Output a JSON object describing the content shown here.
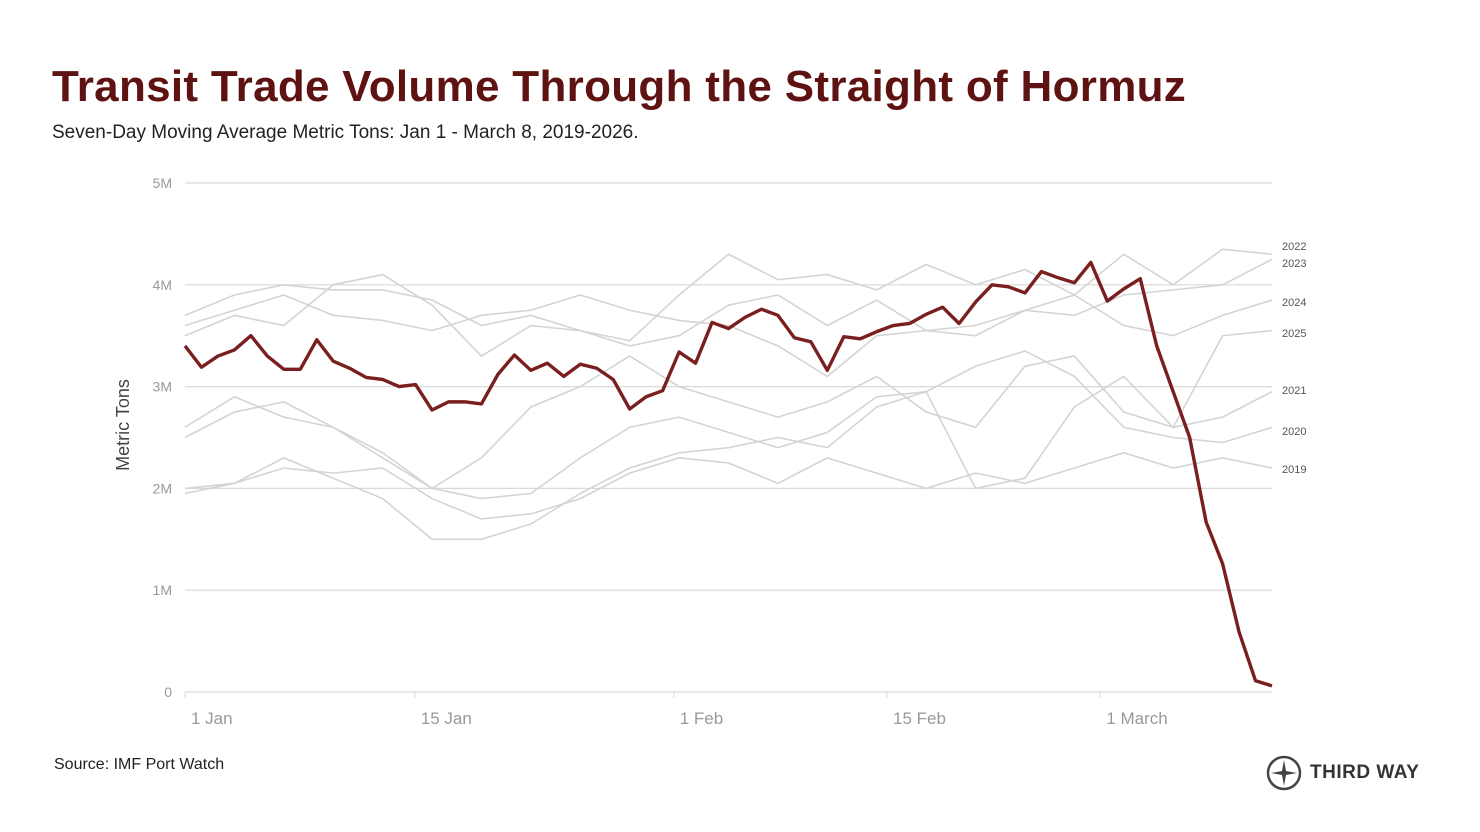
{
  "title": "Transit Trade Volume Through the Straight of Hormuz",
  "subtitle": "Seven-Day Moving Average Metric Tons: Jan 1 - March 8, 2019-2026.",
  "source": "Source: IMF Port Watch",
  "logo": {
    "text": "THIRD WAY",
    "icon": "compass-icon"
  },
  "colors": {
    "highlight": "#7a1f1f",
    "other_years": "#d4d4d4",
    "title": "#5e1212",
    "grid": "#d9d9d9"
  },
  "chart_data": {
    "type": "line",
    "title": "Transit Trade Volume Through the Straight of Hormuz",
    "ylabel": "Metric Tons",
    "xlabel": "",
    "ylim": [
      0,
      5000000
    ],
    "yticks": [
      {
        "value": 0,
        "label": "0"
      },
      {
        "value": 1000000,
        "label": "1M"
      },
      {
        "value": 2000000,
        "label": "2M"
      },
      {
        "value": 3000000,
        "label": "3M"
      },
      {
        "value": 4000000,
        "label": "4M"
      },
      {
        "value": 5000000,
        "label": "5M"
      }
    ],
    "xticks": [
      {
        "date": "01-01",
        "label": "1 Jan"
      },
      {
        "date": "01-15",
        "label": "15 Jan"
      },
      {
        "date": "02-01",
        "label": "1 Feb"
      },
      {
        "date": "02-15",
        "label": "15 Feb"
      },
      {
        "date": "03-01",
        "label": "1 March"
      }
    ],
    "xrange": [
      "01-01",
      "03-08"
    ],
    "grid": true,
    "legend": "direct labels at right end",
    "highlight_series": {
      "name": "",
      "dates_daily_from": "01-01",
      "values_millions": [
        3.4,
        3.19,
        3.3,
        3.36,
        3.5,
        3.3,
        3.17,
        3.17,
        3.46,
        3.25,
        3.18,
        3.09,
        3.07,
        3.0,
        3.02,
        2.77,
        2.85,
        2.85,
        2.83,
        3.12,
        3.31,
        3.16,
        3.23,
        3.1,
        3.22,
        3.18,
        3.07,
        2.78,
        2.9,
        2.96,
        3.34,
        3.23,
        3.63,
        3.57,
        3.68,
        3.76,
        3.7,
        3.48,
        3.44,
        3.16,
        3.49,
        3.47,
        3.54,
        3.6,
        3.62,
        3.71,
        3.78,
        3.62,
        3.83,
        4.0,
        3.98,
        3.92,
        4.13,
        4.07,
        4.02,
        4.22,
        3.84,
        3.96,
        4.06,
        3.4,
        2.95,
        2.5,
        1.67,
        1.26,
        0.59,
        0.11,
        0.06
      ]
    },
    "series": [
      {
        "name": "2022",
        "values_millions_every_3_days": [
          3.7,
          3.9,
          4.0,
          3.95,
          3.95,
          3.85,
          3.6,
          3.7,
          3.55,
          3.45,
          3.9,
          4.3,
          4.05,
          4.1,
          3.95,
          4.2,
          4.0,
          4.15,
          3.9,
          4.3,
          4.0,
          4.35,
          4.3
        ]
      },
      {
        "name": "2023",
        "values_millions_every_3_days": [
          3.6,
          3.75,
          3.9,
          3.7,
          3.65,
          3.55,
          3.7,
          3.75,
          3.9,
          3.75,
          3.65,
          3.6,
          3.4,
          3.1,
          3.5,
          3.55,
          3.6,
          3.75,
          3.7,
          3.9,
          3.95,
          4.0,
          4.25
        ]
      },
      {
        "name": "2024",
        "values_millions_every_3_days": [
          3.5,
          3.7,
          3.6,
          4.0,
          4.1,
          3.8,
          3.3,
          3.6,
          3.55,
          3.4,
          3.5,
          3.8,
          3.9,
          3.6,
          3.85,
          3.55,
          3.5,
          3.75,
          3.9,
          3.6,
          3.5,
          3.7,
          3.85
        ]
      },
      {
        "name": "2025",
        "values_millions_every_3_days": [
          2.6,
          2.9,
          2.7,
          2.6,
          2.3,
          2.0,
          2.3,
          2.8,
          3.0,
          3.3,
          3.0,
          2.85,
          2.7,
          2.85,
          3.1,
          2.75,
          2.6,
          3.2,
          3.3,
          2.75,
          2.6,
          3.5,
          3.55
        ]
      },
      {
        "name": "2021",
        "values_millions_every_3_days": [
          2.0,
          2.05,
          2.3,
          2.1,
          1.9,
          1.5,
          1.5,
          1.65,
          1.95,
          2.2,
          2.35,
          2.4,
          2.5,
          2.4,
          2.8,
          2.95,
          2.0,
          2.1,
          2.8,
          3.1,
          2.6,
          2.7,
          2.95
        ]
      },
      {
        "name": "2020",
        "values_millions_every_3_days": [
          2.5,
          2.75,
          2.85,
          2.6,
          2.35,
          2.0,
          1.9,
          1.95,
          2.3,
          2.6,
          2.7,
          2.55,
          2.4,
          2.55,
          2.9,
          2.95,
          3.2,
          3.35,
          3.1,
          2.6,
          2.5,
          2.45,
          2.6
        ]
      },
      {
        "name": "2019",
        "values_millions_every_3_days": [
          1.95,
          2.05,
          2.2,
          2.15,
          2.2,
          1.9,
          1.7,
          1.75,
          1.9,
          2.15,
          2.3,
          2.25,
          2.05,
          2.3,
          2.15,
          2.0,
          2.15,
          2.05,
          2.2,
          2.35,
          2.2,
          2.3,
          2.2
        ]
      }
    ]
  }
}
